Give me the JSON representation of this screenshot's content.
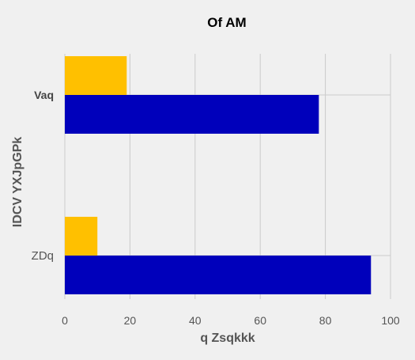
{
  "chart_data": {
    "type": "bar",
    "orientation": "horizontal",
    "title": "Of AM",
    "xlabel": "q Zsqkkk",
    "ylabel": "IDCV YXJpGPk",
    "categories": [
      "Vaq",
      "ZDq"
    ],
    "series": [
      {
        "color": "#ffc000",
        "values": [
          19,
          10
        ]
      },
      {
        "color": "#0000bb",
        "values": [
          78,
          94
        ]
      }
    ],
    "xlim": [
      0,
      100
    ],
    "xticks": [
      0,
      20,
      40,
      60,
      80,
      100
    ],
    "xtick_labels": [
      "0",
      "20",
      "40",
      "60",
      "80",
      "100"
    ],
    "grid": true,
    "legend": "none"
  }
}
